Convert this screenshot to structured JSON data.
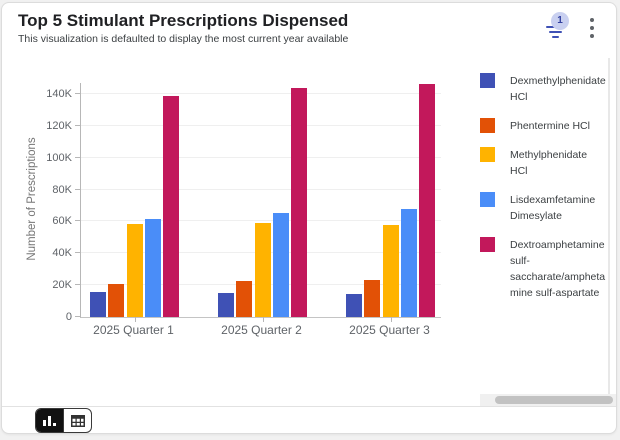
{
  "header": {
    "title": "Top 5 Stimulant Prescriptions Dispensed",
    "subtitle": "This visualization is defaulted to display the most current year available",
    "filter_badge_count": "1",
    "accent_color": "#3F51B5"
  },
  "chart_data": {
    "type": "bar",
    "title": "Top 5 Stimulant Prescriptions Dispensed",
    "xlabel": "",
    "ylabel": "Number of Prescriptions",
    "categories": [
      "2025 Quarter 1",
      "2025 Quarter 2",
      "2025 Quarter 3"
    ],
    "series": [
      {
        "name": "Dexmethylphenidate HCl",
        "color": "#3F51B5",
        "values": [
          15500,
          15000,
          14500
        ]
      },
      {
        "name": "Phentermine HCl",
        "color": "#E25106",
        "values": [
          20500,
          22500,
          23000
        ]
      },
      {
        "name": "Methylphenidate HCl",
        "color": "#FFB300",
        "values": [
          58500,
          59000,
          57500
        ]
      },
      {
        "name": "Lisdexamfetamine Dimesylate",
        "color": "#4A8DF8",
        "values": [
          61500,
          65000,
          67500
        ]
      },
      {
        "name": "Dextroamphetamine sulf-saccharate/amphetamine sulf-aspartate",
        "color": "#C2185B",
        "values": [
          139000,
          143500,
          146000
        ]
      }
    ],
    "ylim": [
      0,
      140000
    ],
    "yticks": [
      {
        "value": 0,
        "label": "0"
      },
      {
        "value": 20000,
        "label": "20K"
      },
      {
        "value": 40000,
        "label": "40K"
      },
      {
        "value": 60000,
        "label": "60K"
      },
      {
        "value": 80000,
        "label": "80K"
      },
      {
        "value": 100000,
        "label": "100K"
      },
      {
        "value": 120000,
        "label": "120K"
      },
      {
        "value": 140000,
        "label": "140K"
      }
    ],
    "grid": true,
    "legend_position": "right"
  },
  "footer": {
    "view_toggle": [
      {
        "id": "chart-view",
        "icon": "bar-chart-icon",
        "selected": true
      },
      {
        "id": "table-view",
        "icon": "table-icon",
        "selected": false
      }
    ]
  }
}
